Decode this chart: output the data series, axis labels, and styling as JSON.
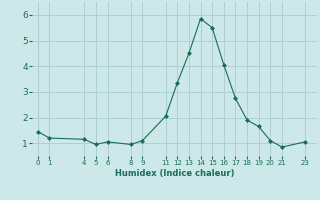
{
  "x": [
    0,
    1,
    4,
    5,
    6,
    8,
    9,
    11,
    12,
    13,
    14,
    15,
    16,
    17,
    18,
    19,
    20,
    21,
    23
  ],
  "y": [
    1.45,
    1.2,
    1.15,
    0.95,
    1.05,
    0.95,
    1.1,
    2.05,
    3.35,
    4.5,
    5.85,
    5.5,
    4.05,
    2.75,
    1.9,
    1.65,
    1.1,
    0.85,
    1.05
  ],
  "line_color": "#1a6b5a",
  "marker_color": "#1a6b5a",
  "bg_color": "#cce8e8",
  "grid_color": "#aacccc",
  "xlabel": "Humidex (Indice chaleur)",
  "xticks": [
    0,
    1,
    4,
    5,
    6,
    8,
    9,
    11,
    12,
    13,
    14,
    15,
    16,
    17,
    18,
    19,
    20,
    21,
    23
  ],
  "yticks": [
    1,
    2,
    3,
    4,
    5,
    6
  ],
  "ylim": [
    0.5,
    6.5
  ],
  "xlim": [
    -0.5,
    24.0
  ]
}
